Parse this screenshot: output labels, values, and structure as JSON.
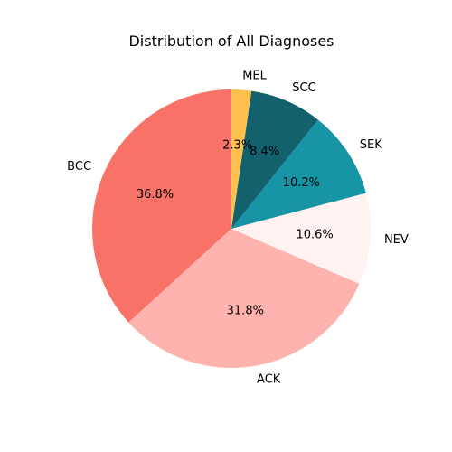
{
  "chart_data": {
    "type": "pie",
    "title": "Distribution of All Diagnoses",
    "start_angle_deg": 90,
    "direction": "counterclockwise",
    "slices": [
      {
        "label": "BCC",
        "value": 36.8,
        "pct_label": "36.8%",
        "color": "#F87268"
      },
      {
        "label": "ACK",
        "value": 31.8,
        "pct_label": "31.8%",
        "color": "#FFB3AE"
      },
      {
        "label": "NEV",
        "value": 10.6,
        "pct_label": "10.6%",
        "color": "#FFF2F1"
      },
      {
        "label": "SEK",
        "value": 10.2,
        "pct_label": "10.2%",
        "color": "#1794A5"
      },
      {
        "label": "SCC",
        "value": 8.4,
        "pct_label": "8.4%",
        "color": "#12616D"
      },
      {
        "label": "MEL",
        "value": 2.3,
        "pct_label": "2.3%",
        "color": "#FFC14D"
      }
    ]
  }
}
